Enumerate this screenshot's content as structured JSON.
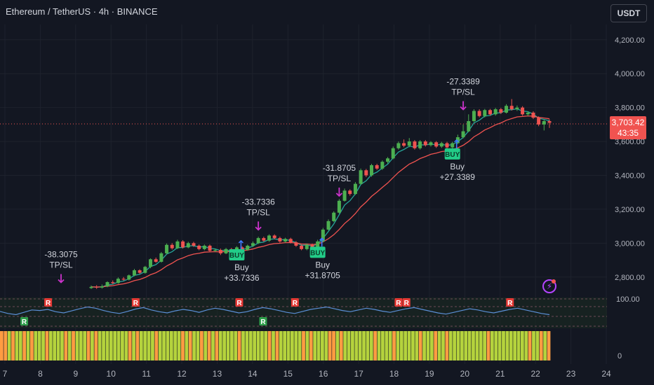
{
  "header": {
    "title": "Ethereum / TetherUS · 4h · BINANCE",
    "currency": "USDT"
  },
  "price_tag": {
    "price": "3,703.42",
    "countdown": "43:35"
  },
  "colors": {
    "up": "#4caf50",
    "down": "#ef5350",
    "ema_fast": "#26a69a",
    "ema_slow": "#f05350",
    "signal": "#cc33cc",
    "buy_badge": "#22cc88",
    "rsi": "#5b8fd6",
    "heat_green": "#b5d33d",
    "heat_orange": "#ff9c42"
  },
  "chart_data": {
    "type": "candlestick",
    "x_ticks": [
      "7",
      "8",
      "9",
      "10",
      "11",
      "12",
      "13",
      "14",
      "15",
      "16",
      "17",
      "18",
      "19",
      "20",
      "21",
      "22",
      "23",
      "24"
    ],
    "y_ticks": [
      "4,200.00",
      "4,000.00",
      "3,800.00",
      "3,600.00",
      "3,400.00",
      "3,200.00",
      "3,000.00",
      "2,800.00"
    ],
    "y_range": [
      2700,
      4290
    ],
    "current_price": 3703.42,
    "candles": [
      [
        2735,
        2742,
        2730,
        2750
      ],
      [
        2742,
        2738,
        2730,
        2752
      ],
      [
        2738,
        2745,
        2732,
        2756
      ],
      [
        2745,
        2770,
        2740,
        2775
      ],
      [
        2770,
        2765,
        2758,
        2780
      ],
      [
        2765,
        2790,
        2760,
        2798
      ],
      [
        2790,
        2785,
        2778,
        2800
      ],
      [
        2785,
        2810,
        2780,
        2815
      ],
      [
        2810,
        2840,
        2805,
        2848
      ],
      [
        2840,
        2825,
        2818,
        2846
      ],
      [
        2825,
        2860,
        2820,
        2866
      ],
      [
        2860,
        2905,
        2852,
        2910
      ],
      [
        2905,
        2890,
        2884,
        2915
      ],
      [
        2890,
        2940,
        2885,
        2948
      ],
      [
        2940,
        2990,
        2935,
        2998
      ],
      [
        2990,
        2970,
        2962,
        3000
      ],
      [
        2970,
        3010,
        2965,
        3020
      ],
      [
        3010,
        2975,
        2968,
        3018
      ],
      [
        2975,
        3000,
        2970,
        3008
      ],
      [
        3000,
        2985,
        2978,
        3008
      ],
      [
        2985,
        2965,
        2958,
        2992
      ],
      [
        2965,
        2985,
        2958,
        2992
      ],
      [
        2985,
        2955,
        2948,
        2992
      ],
      [
        2955,
        2960,
        2948,
        2968
      ],
      [
        2960,
        2940,
        2930,
        2968
      ],
      [
        2940,
        2965,
        2935,
        2972
      ],
      [
        2965,
        2945,
        2938,
        2972
      ],
      [
        2945,
        2975,
        2940,
        2982
      ],
      [
        2975,
        2960,
        2952,
        2982
      ],
      [
        2960,
        2985,
        2955,
        2992
      ],
      [
        2985,
        3000,
        2978,
        3010
      ],
      [
        3000,
        3030,
        2995,
        3038
      ],
      [
        3030,
        3015,
        3008,
        3038
      ],
      [
        3015,
        3045,
        3008,
        3052
      ],
      [
        3045,
        3030,
        3022,
        3052
      ],
      [
        3030,
        3010,
        3002,
        3038
      ],
      [
        3010,
        3025,
        3002,
        3032
      ],
      [
        3025,
        3005,
        2998,
        3032
      ],
      [
        3005,
        2985,
        2978,
        3012
      ],
      [
        2985,
        2965,
        2958,
        2992
      ],
      [
        2965,
        2990,
        2958,
        2998
      ],
      [
        2990,
        2975,
        2968,
        2998
      ],
      [
        2975,
        3010,
        2970,
        3020
      ],
      [
        3010,
        3080,
        3005,
        3090
      ],
      [
        3080,
        3130,
        3075,
        3140
      ],
      [
        3130,
        3180,
        3124,
        3188
      ],
      [
        3180,
        3250,
        3175,
        3260
      ],
      [
        3250,
        3310,
        3245,
        3322
      ],
      [
        3310,
        3290,
        3280,
        3318
      ],
      [
        3290,
        3350,
        3285,
        3360
      ],
      [
        3350,
        3430,
        3345,
        3440
      ],
      [
        3430,
        3400,
        3390,
        3438
      ],
      [
        3400,
        3460,
        3392,
        3468
      ],
      [
        3460,
        3440,
        3432,
        3468
      ],
      [
        3440,
        3480,
        3432,
        3488
      ],
      [
        3480,
        3500,
        3470,
        3508
      ],
      [
        3500,
        3560,
        3495,
        3570
      ],
      [
        3560,
        3590,
        3552,
        3600
      ],
      [
        3590,
        3575,
        3566,
        3612
      ],
      [
        3575,
        3600,
        3566,
        3620
      ],
      [
        3600,
        3560,
        3552,
        3608
      ],
      [
        3560,
        3600,
        3552,
        3608
      ],
      [
        3600,
        3578,
        3570,
        3608
      ],
      [
        3578,
        3595,
        3570,
        3602
      ],
      [
        3595,
        3570,
        3562,
        3602
      ],
      [
        3570,
        3590,
        3562,
        3598
      ],
      [
        3590,
        3565,
        3558,
        3598
      ],
      [
        3565,
        3590,
        3558,
        3598
      ],
      [
        3590,
        3625,
        3585,
        3640
      ],
      [
        3625,
        3660,
        3618,
        3700
      ],
      [
        3660,
        3720,
        3655,
        3760
      ],
      [
        3720,
        3780,
        3714,
        3790
      ],
      [
        3780,
        3750,
        3742,
        3790
      ],
      [
        3750,
        3785,
        3742,
        3792
      ],
      [
        3785,
        3760,
        3752,
        3792
      ],
      [
        3760,
        3790,
        3752,
        3798
      ],
      [
        3790,
        3770,
        3762,
        3798
      ],
      [
        3770,
        3810,
        3765,
        3820
      ],
      [
        3810,
        3790,
        3782,
        3850
      ],
      [
        3790,
        3800,
        3780,
        3812
      ],
      [
        3800,
        3760,
        3752,
        3808
      ],
      [
        3760,
        3770,
        3750,
        3778
      ],
      [
        3770,
        3740,
        3732,
        3778
      ],
      [
        3740,
        3700,
        3690,
        3748
      ],
      [
        3700,
        3720,
        3665,
        3728
      ],
      [
        3720,
        3710,
        3680,
        3730
      ]
    ],
    "signals": [
      {
        "type": "buy",
        "label": "Buy",
        "value": "+33.7336",
        "badge": "BUY",
        "candle": 27,
        "price": 2985
      },
      {
        "type": "tp_sl",
        "value": "-33.7336",
        "label": "TP/SL",
        "candle": 31,
        "price": 3070
      },
      {
        "type": "buy",
        "label": "Buy",
        "value": "+31.8705",
        "badge": "BUY",
        "candle": 42,
        "price": 3000
      },
      {
        "type": "tp_sl",
        "value": "-31.8705",
        "label": "TP/SL",
        "candle": 46,
        "price": 3270
      },
      {
        "type": "buy",
        "label": "Buy",
        "value": "+27.3389",
        "badge": "BUY",
        "candle": 67,
        "price": 3580
      },
      {
        "type": "tp_sl",
        "value": "-27.3389",
        "label": "TP/SL",
        "candle": 69,
        "price": 3780
      },
      {
        "type": "tp_sl",
        "value": "-38.3075",
        "label": "TP/SL",
        "candle": 0,
        "price": 2760
      }
    ],
    "rsi": {
      "label": "100.00",
      "values": [
        55,
        48,
        44,
        52,
        60,
        58,
        62,
        54,
        50,
        57,
        64,
        70,
        66,
        58,
        52,
        48,
        55,
        63,
        68,
        60,
        54,
        50,
        57,
        62,
        58,
        52,
        60,
        66,
        62,
        56,
        50,
        54,
        62,
        68,
        64,
        58,
        52,
        48,
        55,
        62,
        66,
        70,
        64,
        58,
        54,
        60,
        66,
        62,
        56,
        52,
        58,
        64,
        68,
        62,
        56,
        50,
        46,
        52,
        58,
        64,
        60,
        54,
        50,
        56,
        62,
        66,
        60,
        54,
        48,
        44
      ]
    },
    "rsi_markers": [
      {
        "label": "R",
        "color": "#e53935",
        "index": 6
      },
      {
        "label": "R",
        "color": "#2e9e4a",
        "index": 3
      },
      {
        "label": "R",
        "color": "#e53935",
        "index": 17
      },
      {
        "label": "R",
        "color": "#e53935",
        "index": 30
      },
      {
        "label": "R",
        "color": "#2e9e4a",
        "index": 33
      },
      {
        "label": "R",
        "color": "#e53935",
        "index": 37
      },
      {
        "label": "R",
        "color": "#e53935",
        "index": 50
      },
      {
        "label": "R",
        "color": "#e53935",
        "index": 51
      },
      {
        "label": "R",
        "color": "#e53935",
        "index": 64
      }
    ],
    "heatmap": {
      "label": "0",
      "bars": [
        "o",
        "o",
        "g",
        "o",
        "g",
        "g",
        "o",
        "g",
        "o",
        "g",
        "g",
        "g",
        "o",
        "g",
        "g",
        "g",
        "g",
        "o",
        "g",
        "o",
        "g",
        "g",
        "g",
        "o",
        "g",
        "o",
        "g",
        "g",
        "g",
        "g",
        "g",
        "g",
        "g",
        "g",
        "o",
        "g",
        "o",
        "g",
        "g",
        "g",
        "g",
        "o",
        "g",
        "g",
        "g",
        "g",
        "g",
        "g",
        "o",
        "g",
        "o",
        "g",
        "g",
        "o",
        "g",
        "o",
        "g",
        "o",
        "g",
        "g",
        "g",
        "g",
        "g",
        "o",
        "g",
        "g",
        "g",
        "g",
        "g",
        "g",
        "g",
        "o",
        "g",
        "o",
        "g",
        "g",
        "g",
        "g",
        "g",
        "g",
        "o",
        "g",
        "o",
        "g",
        "g",
        "g",
        "g",
        "o",
        "o",
        "g",
        "o",
        "g",
        "g",
        "g",
        "g",
        "g",
        "g",
        "g",
        "g",
        "o",
        "g",
        "g",
        "g",
        "g",
        "o",
        "g",
        "g",
        "g",
        "g",
        "g",
        "g",
        "o",
        "g",
        "g",
        "g",
        "o",
        "g",
        "g",
        "o",
        "g",
        "g",
        "g",
        "g",
        "g",
        "g",
        "g",
        "g",
        "g",
        "g",
        "o",
        "g",
        "g",
        "g",
        "g",
        "g",
        "g",
        "g",
        "g",
        "g",
        "g",
        "o",
        "g",
        "g",
        "o",
        "g",
        "o"
      ]
    }
  }
}
